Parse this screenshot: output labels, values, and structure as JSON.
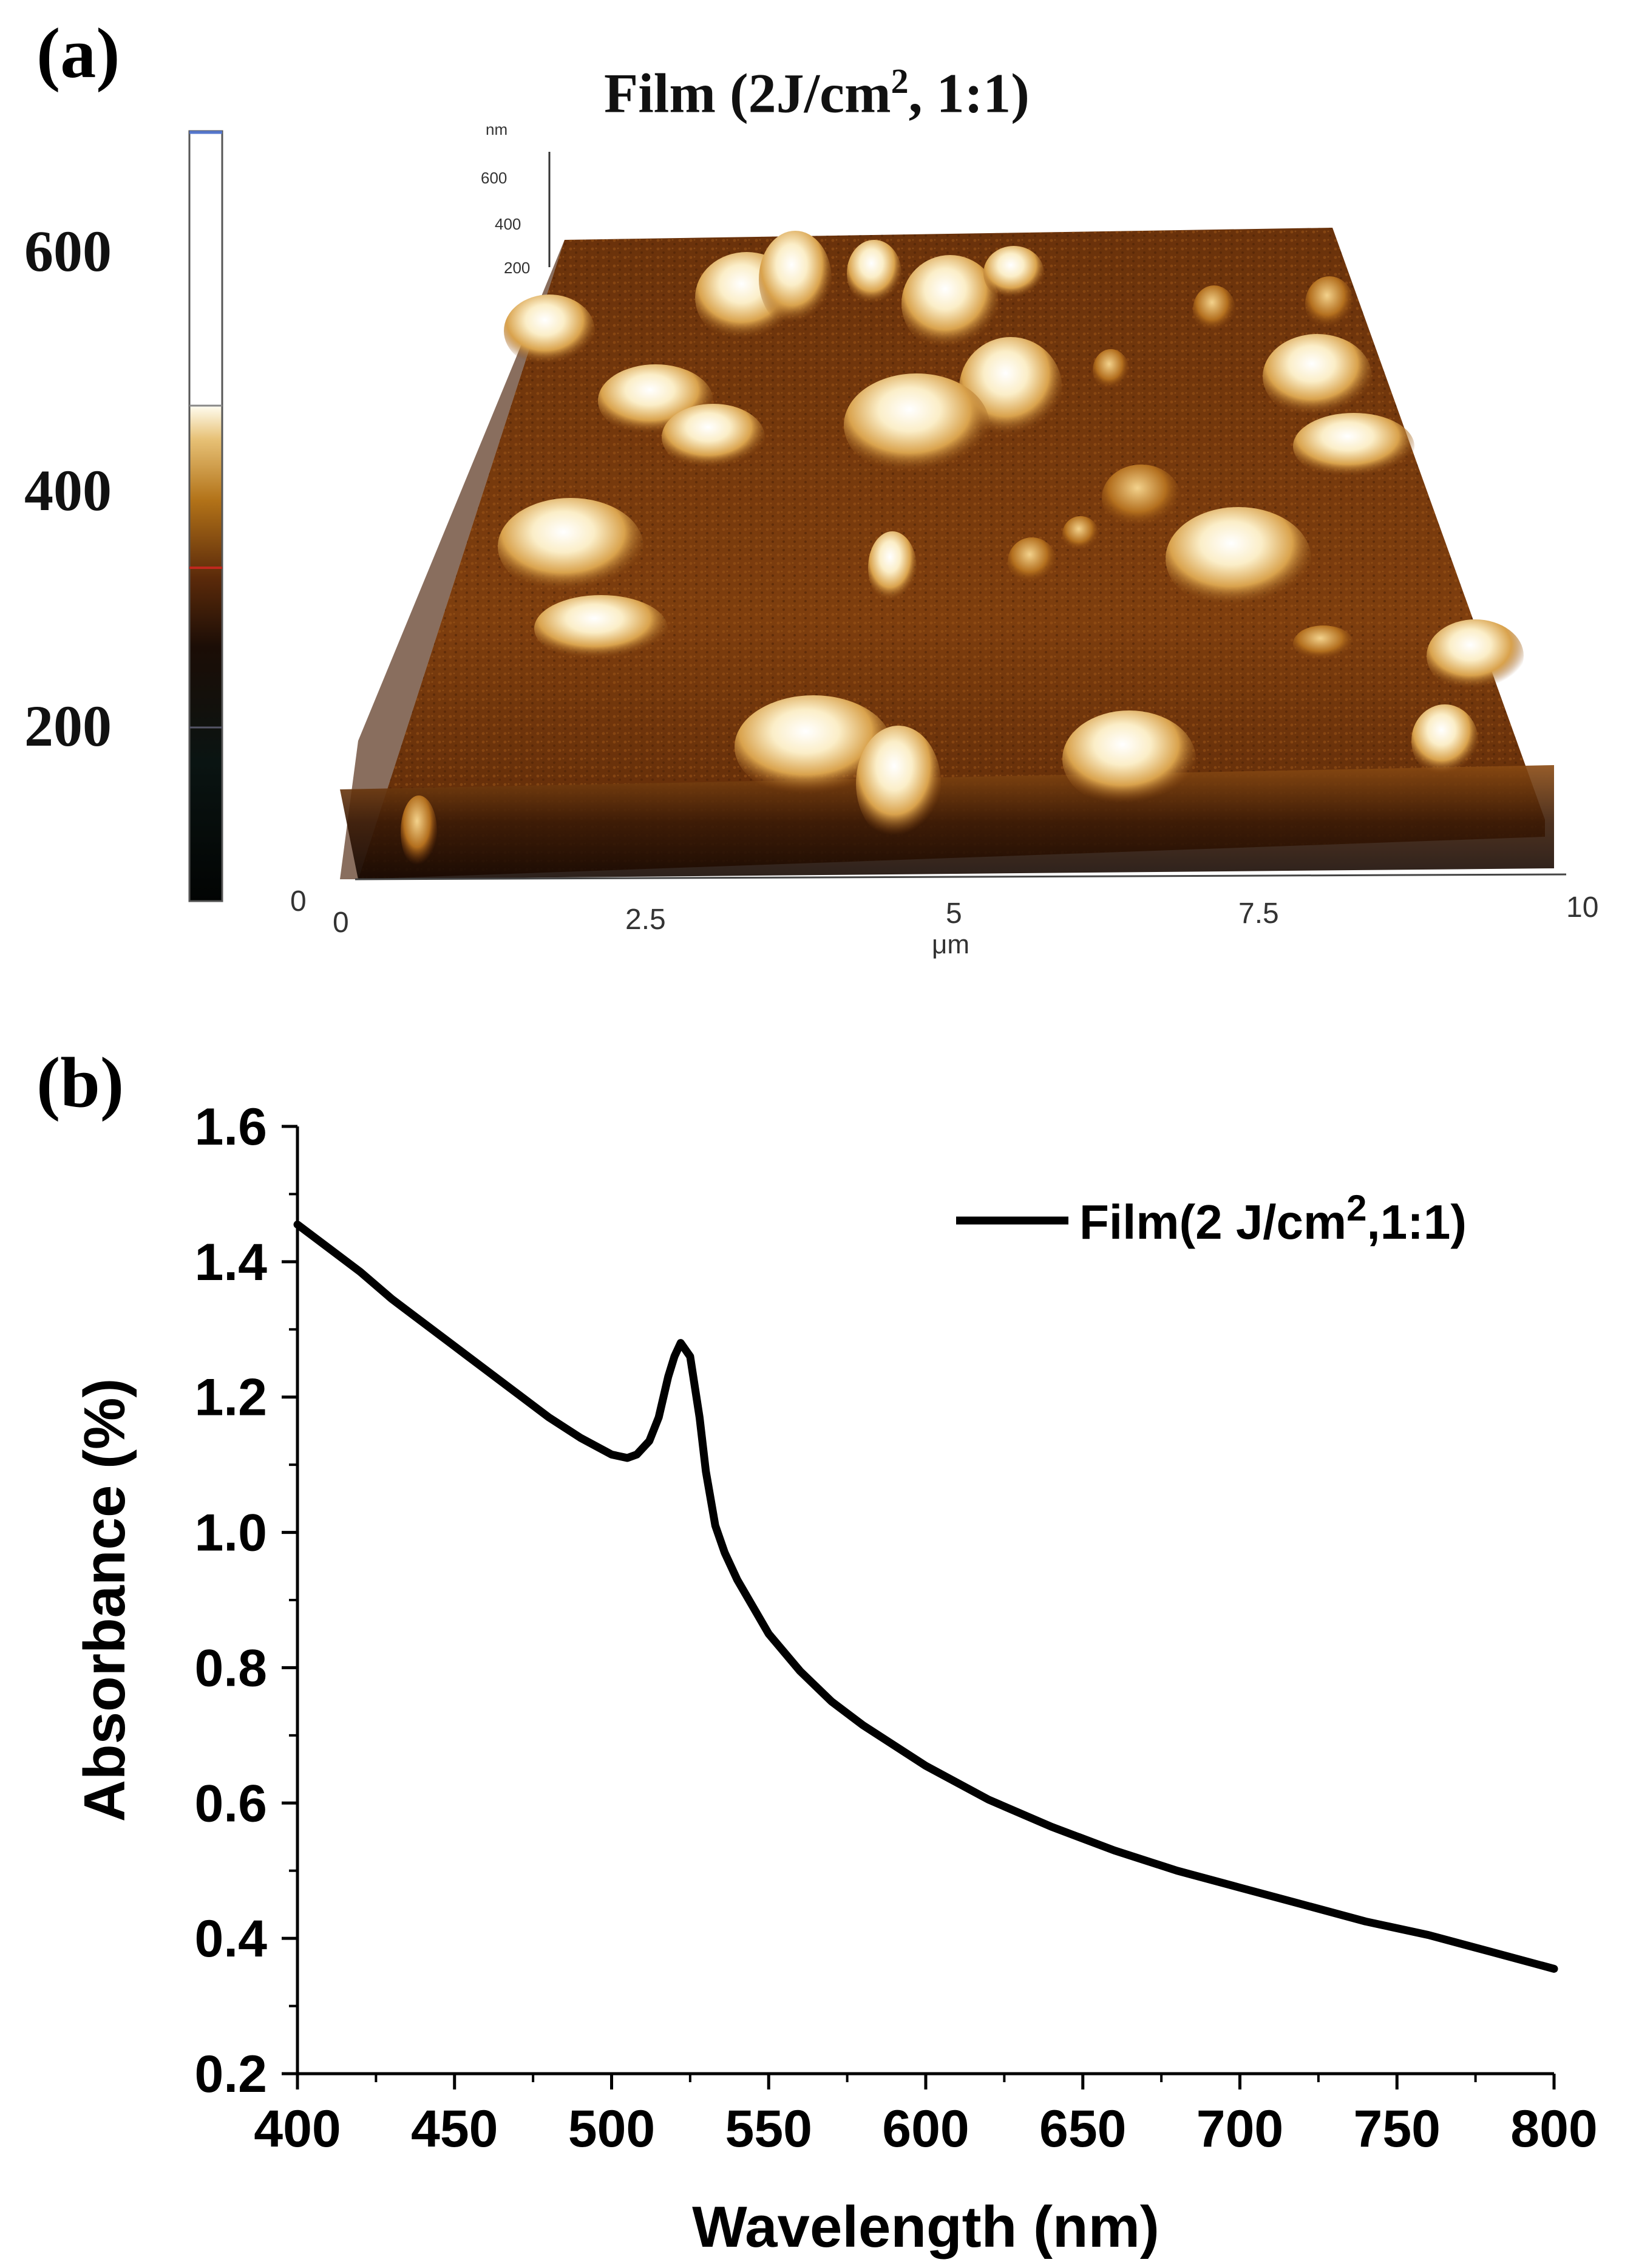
{
  "panel_a": {
    "label": "(a)",
    "title": "Film (2J/cm",
    "title_sup": "2",
    "title_tail": ", 1:1)",
    "colorbar_ticks": [
      "600",
      "400",
      "200"
    ],
    "z_axis_unit": "nm",
    "z_axis_ticks": [
      "600",
      "400",
      "200"
    ],
    "x_ticks": [
      "0",
      "2.5",
      "5",
      "7.5",
      "10"
    ],
    "x_unit": "μm",
    "corner_tick": "0",
    "colors": {
      "low": "#0b0503",
      "mid": "#7a3a0c",
      "high": "#f6e6b4",
      "peak": "#ffffff"
    }
  },
  "panel_b": {
    "label": "(b)"
  },
  "chart_data": {
    "type": "line",
    "title": "",
    "xlabel": "Wavelength (nm)",
    "ylabel": "Absorbance (%)",
    "xlim": [
      400,
      800
    ],
    "ylim": [
      0.2,
      1.6
    ],
    "xticks": [
      400,
      450,
      500,
      550,
      600,
      650,
      700,
      750,
      800
    ],
    "yticks": [
      0.2,
      0.4,
      0.6,
      0.8,
      1.0,
      1.2,
      1.4,
      1.6
    ],
    "legend": {
      "placement": "top-right",
      "text": "Film(2 J/cm",
      "sup": "2",
      "tail": ",1:1)"
    },
    "series": [
      {
        "name": "Film(2 J/cm2,1:1)",
        "color": "#000000",
        "x": [
          400,
          410,
          420,
          430,
          440,
          450,
          460,
          470,
          480,
          490,
          500,
          505,
          508,
          512,
          515,
          518,
          520,
          522,
          525,
          528,
          530,
          533,
          536,
          540,
          545,
          550,
          560,
          570,
          580,
          590,
          600,
          620,
          640,
          660,
          680,
          700,
          720,
          740,
          760,
          780,
          800
        ],
        "y": [
          1.455,
          1.42,
          1.385,
          1.345,
          1.31,
          1.275,
          1.24,
          1.205,
          1.17,
          1.14,
          1.115,
          1.11,
          1.115,
          1.135,
          1.17,
          1.23,
          1.26,
          1.28,
          1.26,
          1.17,
          1.09,
          1.01,
          0.97,
          0.93,
          0.89,
          0.85,
          0.795,
          0.75,
          0.715,
          0.685,
          0.655,
          0.605,
          0.565,
          0.53,
          0.5,
          0.475,
          0.45,
          0.425,
          0.405,
          0.38,
          0.355
        ]
      }
    ]
  }
}
